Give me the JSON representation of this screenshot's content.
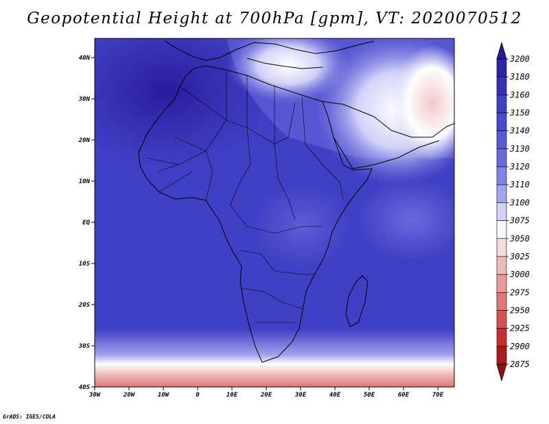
{
  "title": "Geopotential Height at 700hPa [gpm], VT: 2020070512",
  "credit": "GrADS: IGES/COLA",
  "map": {
    "lon_labels": [
      "30W",
      "20W",
      "10W",
      "0",
      "10E",
      "20E",
      "30E",
      "40E",
      "50E",
      "60E",
      "70E"
    ],
    "lat_labels": [
      "40N",
      "30N",
      "20N",
      "10N",
      "EQ",
      "10S",
      "20S",
      "30S",
      "40S"
    ],
    "lon_range": [
      -30,
      75
    ],
    "lat_range": [
      -40,
      45
    ]
  },
  "colorbar": {
    "levels": [
      "3200",
      "3180",
      "3160",
      "3150",
      "3140",
      "3130",
      "3120",
      "3110",
      "3100",
      "3075",
      "3050",
      "3025",
      "3000",
      "2975",
      "2950",
      "2925",
      "2900",
      "2875"
    ],
    "colors": [
      "#2a1a9c",
      "#2f24a8",
      "#3a30b8",
      "#4040c4",
      "#4a4acc",
      "#5a5ad4",
      "#6a6ade",
      "#8282e6",
      "#a4a4ee",
      "#d2d2f8",
      "#f6f6ff",
      "#f6dada",
      "#efbcbc",
      "#e89a9a",
      "#e07676",
      "#d65252",
      "#c83030",
      "#ab1a1a",
      "#8e1414"
    ]
  }
}
